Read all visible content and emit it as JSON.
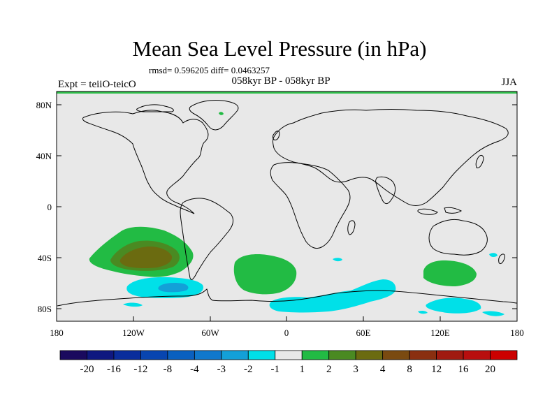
{
  "title": "Mean Sea Level Pressure (in hPa)",
  "stats_line": "rmsd= 0.596205 diff= 0.0463257",
  "experiment": "Expt = teiiO-teicO",
  "period": "058kyr BP - 058kyr BP",
  "season": "JJA",
  "colors": {
    "map_background": "#e8e8e8",
    "coastline": "#000000",
    "frame_top_band": "#2ebd4a"
  },
  "map": {
    "lat_labels": [
      "80N",
      "40N",
      "0",
      "40S",
      "80S"
    ],
    "lon_labels": [
      "180",
      "120W",
      "60W",
      "0",
      "60E",
      "120E",
      "180"
    ]
  },
  "colorbar": {
    "labels": [
      "-20",
      "-16",
      "-12",
      "-8",
      "-4",
      "-3",
      "-2",
      "-1",
      "1",
      "2",
      "3",
      "4",
      "8",
      "12",
      "16",
      "20"
    ],
    "colors": [
      "#1a0a5e",
      "#0f1880",
      "#0a2d9c",
      "#0845b0",
      "#0a60c0",
      "#1078cc",
      "#13a0d8",
      "#00e0e8",
      "#e8e8e8",
      "#22bb44",
      "#4a8a22",
      "#6b6b10",
      "#7a4a10",
      "#8a2f10",
      "#a01a10",
      "#b80e0e",
      "#cc0000"
    ]
  },
  "anomalies": [
    {
      "region": "South Pacific",
      "level": "2"
    },
    {
      "region": "South Pacific core",
      "level": "3"
    },
    {
      "region": "South Pacific core",
      "level": "4"
    },
    {
      "region": "Southern Ocean Pacific sector",
      "level": "-1"
    },
    {
      "region": "Southern Ocean Pacific sector core",
      "level": "-2"
    },
    {
      "region": "South Atlantic",
      "level": "2"
    },
    {
      "region": "Southern Ocean Indian sector",
      "level": "-1"
    },
    {
      "region": "South Indian Ocean",
      "level": "2"
    },
    {
      "region": "Southern Ocean south of Australia",
      "level": "-1"
    }
  ]
}
